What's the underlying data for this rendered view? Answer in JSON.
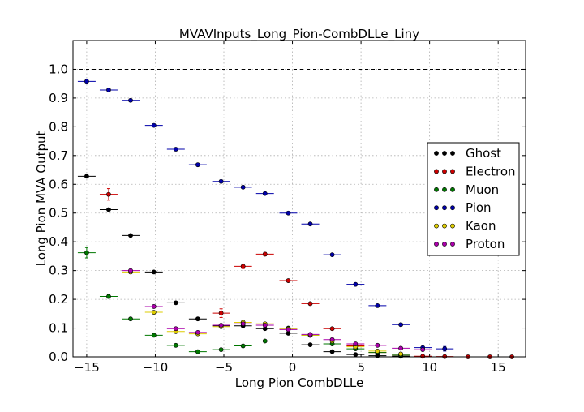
{
  "chart_data": {
    "type": "scatter",
    "title": "MVAVInputs_Long_Pion-CombDLLe_Liny",
    "xlabel": "Long Pion CombDLLe",
    "ylabel": "Long Pion MVA Output",
    "xlim": [
      -16,
      17
    ],
    "ylim": [
      0.0,
      1.1
    ],
    "x_ticks": [
      -15,
      -10,
      -5,
      0,
      5,
      10,
      15
    ],
    "x_tick_labels": [
      "−15",
      "−10",
      "−5",
      "0",
      "5",
      "10",
      "15"
    ],
    "y_ticks": [
      0.0,
      0.1,
      0.2,
      0.3,
      0.4,
      0.5,
      0.6,
      0.7,
      0.8,
      0.9,
      1.0
    ],
    "y_tick_labels": [
      "0.0",
      "0.1",
      "0.2",
      "0.3",
      "0.4",
      "0.5",
      "0.6",
      "0.7",
      "0.8",
      "0.9",
      "1.0"
    ],
    "reference_line": 1.0,
    "grid": true,
    "legend_position": "right",
    "series": [
      {
        "name": "Ghost",
        "color": "#000000",
        "points": [
          {
            "x": -15,
            "y": 0.628,
            "xerr": 0.65,
            "yerr": 0.004
          },
          {
            "x": -13.4,
            "y": 0.512,
            "xerr": 0.65,
            "yerr": 0.004
          },
          {
            "x": -11.8,
            "y": 0.422,
            "xerr": 0.65,
            "yerr": 0.004
          },
          {
            "x": -10.1,
            "y": 0.295,
            "xerr": 0.65,
            "yerr": 0.004
          },
          {
            "x": -8.5,
            "y": 0.188,
            "xerr": 0.65,
            "yerr": 0.004
          },
          {
            "x": -6.9,
            "y": 0.132,
            "xerr": 0.65,
            "yerr": 0.004
          },
          {
            "x": -5.2,
            "y": 0.108,
            "xerr": 0.65,
            "yerr": 0.004
          },
          {
            "x": -3.6,
            "y": 0.108,
            "xerr": 0.65,
            "yerr": 0.004
          },
          {
            "x": -2.0,
            "y": 0.098,
            "xerr": 0.65,
            "yerr": 0.004
          },
          {
            "x": -0.3,
            "y": 0.082,
            "xerr": 0.65,
            "yerr": 0.004
          },
          {
            "x": 1.3,
            "y": 0.042,
            "xerr": 0.65,
            "yerr": 0.004
          },
          {
            "x": 2.9,
            "y": 0.018,
            "xerr": 0.65,
            "yerr": 0.004
          },
          {
            "x": 4.6,
            "y": 0.008,
            "xerr": 0.65,
            "yerr": 0.004
          },
          {
            "x": 6.2,
            "y": 0.004,
            "xerr": 0.65,
            "yerr": 0.004
          },
          {
            "x": 7.9,
            "y": 0.002,
            "xerr": 0.65,
            "yerr": 0.004
          }
        ]
      },
      {
        "name": "Electron",
        "color": "#cc0000",
        "points": [
          {
            "x": -13.4,
            "y": 0.565,
            "xerr": 0.65,
            "yerr": 0.02
          },
          {
            "x": -5.2,
            "y": 0.152,
            "xerr": 0.65,
            "yerr": 0.015
          },
          {
            "x": -3.6,
            "y": 0.315,
            "xerr": 0.65,
            "yerr": 0.008
          },
          {
            "x": -2.0,
            "y": 0.357,
            "xerr": 0.65,
            "yerr": 0.006
          },
          {
            "x": -0.3,
            "y": 0.265,
            "xerr": 0.65,
            "yerr": 0.005
          },
          {
            "x": 1.3,
            "y": 0.185,
            "xerr": 0.65,
            "yerr": 0.004
          },
          {
            "x": 2.9,
            "y": 0.098,
            "xerr": 0.65,
            "yerr": 0.003
          },
          {
            "x": 4.6,
            "y": 0.038,
            "xerr": 0.65,
            "yerr": 0.003
          },
          {
            "x": 6.2,
            "y": 0.015,
            "xerr": 0.65,
            "yerr": 0.002
          },
          {
            "x": 7.9,
            "y": 0.006,
            "xerr": 0.65,
            "yerr": 0.002
          },
          {
            "x": 9.5,
            "y": 0.002,
            "xerr": 0.65,
            "yerr": 0.002
          },
          {
            "x": 11.1,
            "y": 0.001,
            "xerr": 0.65,
            "yerr": 0.002
          },
          {
            "x": 12.8,
            "y": 0.0,
            "xerr": 0.65,
            "yerr": 0.002
          },
          {
            "x": 14.4,
            "y": 0.0,
            "xerr": 0.65,
            "yerr": 0.002
          },
          {
            "x": 16.0,
            "y": 0.0,
            "xerr": 0.65,
            "yerr": 0.002
          }
        ]
      },
      {
        "name": "Muon",
        "color": "#007700",
        "points": [
          {
            "x": -15,
            "y": 0.362,
            "xerr": 0.65,
            "yerr": 0.018
          },
          {
            "x": -13.4,
            "y": 0.21,
            "xerr": 0.65,
            "yerr": 0.006
          },
          {
            "x": -11.8,
            "y": 0.132,
            "xerr": 0.65,
            "yerr": 0.005
          },
          {
            "x": -10.1,
            "y": 0.075,
            "xerr": 0.65,
            "yerr": 0.004
          },
          {
            "x": -8.5,
            "y": 0.04,
            "xerr": 0.65,
            "yerr": 0.004
          },
          {
            "x": -6.9,
            "y": 0.018,
            "xerr": 0.65,
            "yerr": 0.004
          },
          {
            "x": -5.2,
            "y": 0.025,
            "xerr": 0.65,
            "yerr": 0.004
          },
          {
            "x": -3.6,
            "y": 0.038,
            "xerr": 0.65,
            "yerr": 0.004
          },
          {
            "x": -2.0,
            "y": 0.055,
            "xerr": 0.65,
            "yerr": 0.004
          },
          {
            "x": -0.3,
            "y": 0.1,
            "xerr": 0.65,
            "yerr": 0.004
          },
          {
            "x": 1.3,
            "y": 0.075,
            "xerr": 0.65,
            "yerr": 0.004
          },
          {
            "x": 2.9,
            "y": 0.045,
            "xerr": 0.65,
            "yerr": 0.004
          },
          {
            "x": 4.6,
            "y": 0.028,
            "xerr": 0.65,
            "yerr": 0.004
          },
          {
            "x": 6.2,
            "y": 0.015,
            "xerr": 0.65,
            "yerr": 0.004
          },
          {
            "x": 7.9,
            "y": 0.006,
            "xerr": 0.65,
            "yerr": 0.004
          }
        ]
      },
      {
        "name": "Pion",
        "color": "#0000aa",
        "points": [
          {
            "x": -15,
            "y": 0.958,
            "xerr": 0.65,
            "yerr": 0.003
          },
          {
            "x": -13.4,
            "y": 0.928,
            "xerr": 0.65,
            "yerr": 0.003
          },
          {
            "x": -11.8,
            "y": 0.892,
            "xerr": 0.65,
            "yerr": 0.003
          },
          {
            "x": -10.1,
            "y": 0.805,
            "xerr": 0.65,
            "yerr": 0.003
          },
          {
            "x": -8.5,
            "y": 0.722,
            "xerr": 0.65,
            "yerr": 0.003
          },
          {
            "x": -6.9,
            "y": 0.668,
            "xerr": 0.65,
            "yerr": 0.003
          },
          {
            "x": -5.2,
            "y": 0.61,
            "xerr": 0.65,
            "yerr": 0.003
          },
          {
            "x": -3.6,
            "y": 0.59,
            "xerr": 0.65,
            "yerr": 0.003
          },
          {
            "x": -2.0,
            "y": 0.568,
            "xerr": 0.65,
            "yerr": 0.003
          },
          {
            "x": -0.3,
            "y": 0.5,
            "xerr": 0.65,
            "yerr": 0.003
          },
          {
            "x": 1.3,
            "y": 0.462,
            "xerr": 0.65,
            "yerr": 0.003
          },
          {
            "x": 2.9,
            "y": 0.355,
            "xerr": 0.65,
            "yerr": 0.003
          },
          {
            "x": 4.6,
            "y": 0.252,
            "xerr": 0.65,
            "yerr": 0.003
          },
          {
            "x": 6.2,
            "y": 0.178,
            "xerr": 0.65,
            "yerr": 0.003
          },
          {
            "x": 7.9,
            "y": 0.112,
            "xerr": 0.65,
            "yerr": 0.003
          },
          {
            "x": 9.5,
            "y": 0.032,
            "xerr": 0.65,
            "yerr": 0.003
          },
          {
            "x": 11.1,
            "y": 0.028,
            "xerr": 0.65,
            "yerr": 0.008
          }
        ]
      },
      {
        "name": "Kaon",
        "color": "#ddcc00",
        "points": [
          {
            "x": -11.8,
            "y": 0.295,
            "xerr": 0.65,
            "yerr": 0.005
          },
          {
            "x": -10.1,
            "y": 0.155,
            "xerr": 0.65,
            "yerr": 0.005
          },
          {
            "x": -8.5,
            "y": 0.088,
            "xerr": 0.65,
            "yerr": 0.004
          },
          {
            "x": -6.9,
            "y": 0.08,
            "xerr": 0.65,
            "yerr": 0.004
          },
          {
            "x": -5.2,
            "y": 0.105,
            "xerr": 0.65,
            "yerr": 0.004
          },
          {
            "x": -3.6,
            "y": 0.12,
            "xerr": 0.65,
            "yerr": 0.004
          },
          {
            "x": -2.0,
            "y": 0.115,
            "xerr": 0.65,
            "yerr": 0.004
          },
          {
            "x": -0.3,
            "y": 0.098,
            "xerr": 0.65,
            "yerr": 0.004
          },
          {
            "x": 1.3,
            "y": 0.075,
            "xerr": 0.65,
            "yerr": 0.004
          },
          {
            "x": 2.9,
            "y": 0.055,
            "xerr": 0.65,
            "yerr": 0.004
          },
          {
            "x": 4.6,
            "y": 0.035,
            "xerr": 0.65,
            "yerr": 0.004
          },
          {
            "x": 6.2,
            "y": 0.02,
            "xerr": 0.65,
            "yerr": 0.004
          },
          {
            "x": 7.9,
            "y": 0.01,
            "xerr": 0.65,
            "yerr": 0.004
          }
        ]
      },
      {
        "name": "Proton",
        "color": "#aa00aa",
        "points": [
          {
            "x": -11.8,
            "y": 0.3,
            "xerr": 0.65,
            "yerr": 0.005
          },
          {
            "x": -10.1,
            "y": 0.175,
            "xerr": 0.65,
            "yerr": 0.005
          },
          {
            "x": -8.5,
            "y": 0.098,
            "xerr": 0.65,
            "yerr": 0.004
          },
          {
            "x": -6.9,
            "y": 0.085,
            "xerr": 0.65,
            "yerr": 0.004
          },
          {
            "x": -5.2,
            "y": 0.11,
            "xerr": 0.65,
            "yerr": 0.004
          },
          {
            "x": -3.6,
            "y": 0.115,
            "xerr": 0.65,
            "yerr": 0.004
          },
          {
            "x": -2.0,
            "y": 0.11,
            "xerr": 0.65,
            "yerr": 0.004
          },
          {
            "x": -0.3,
            "y": 0.095,
            "xerr": 0.65,
            "yerr": 0.004
          },
          {
            "x": 1.3,
            "y": 0.078,
            "xerr": 0.65,
            "yerr": 0.004
          },
          {
            "x": 2.9,
            "y": 0.06,
            "xerr": 0.65,
            "yerr": 0.004
          },
          {
            "x": 4.6,
            "y": 0.045,
            "xerr": 0.65,
            "yerr": 0.004
          },
          {
            "x": 6.2,
            "y": 0.04,
            "xerr": 0.65,
            "yerr": 0.004
          },
          {
            "x": 7.9,
            "y": 0.03,
            "xerr": 0.65,
            "yerr": 0.004
          },
          {
            "x": 9.5,
            "y": 0.025,
            "xerr": 0.65,
            "yerr": 0.004
          }
        ]
      }
    ]
  }
}
